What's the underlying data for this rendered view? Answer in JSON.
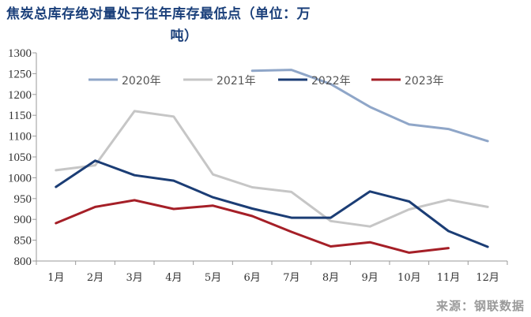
{
  "title_line1": "焦炭总库存绝对量处于往年库存最低点（单位：万",
  "title_line2": "吨）",
  "source": "来源：钢联数据",
  "colors": {
    "2020年": "#8fa6c8",
    "2021年": "#c6c6c6",
    "2022年": "#1b3d75",
    "2023年": "#a51f27",
    "axis": "#999999",
    "tick_text": "#333333"
  },
  "chart_data": {
    "type": "line",
    "categories": [
      "1月",
      "2月",
      "3月",
      "4月",
      "5月",
      "6月",
      "7月",
      "8月",
      "9月",
      "10月",
      "11月",
      "12月"
    ],
    "ylim": [
      800,
      1300
    ],
    "yticks": [
      800,
      850,
      900,
      950,
      1000,
      1050,
      1100,
      1150,
      1200,
      1250,
      1300
    ],
    "grid": false,
    "legend": "top-right",
    "series": [
      {
        "name": "2020年",
        "values": [
          null,
          null,
          null,
          null,
          null,
          1257,
          1259,
          1225,
          1170,
          1128,
          1117,
          1088
        ]
      },
      {
        "name": "2021年",
        "values": [
          1018,
          1030,
          1160,
          1147,
          1008,
          977,
          966,
          896,
          883,
          924,
          947,
          930
        ]
      },
      {
        "name": "2022年",
        "values": [
          978,
          1041,
          1006,
          993,
          953,
          926,
          904,
          904,
          967,
          943,
          872,
          834
        ]
      },
      {
        "name": "2023年",
        "values": [
          891,
          930,
          946,
          925,
          933,
          908,
          870,
          835,
          845,
          820,
          831,
          null
        ]
      }
    ]
  }
}
